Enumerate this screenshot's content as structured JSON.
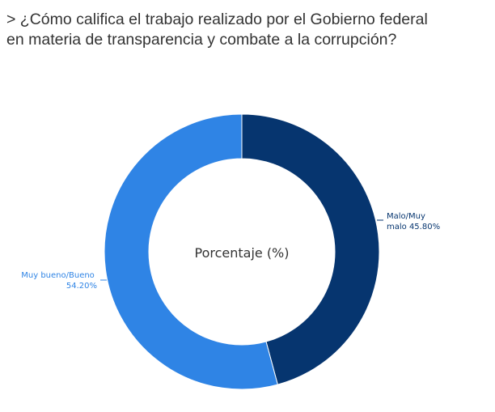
{
  "title_lines": [
    "> ¿Cómo califica el trabajo realizado por el Gobierno federal",
    "en materia de transparencia y combate a la corrupción?"
  ],
  "chart_data": {
    "type": "pie",
    "center_label": "Porcentaje (%)",
    "categories": [
      "Malo/Muy malo",
      "Muy bueno/Bueno"
    ],
    "values": [
      45.8,
      54.2
    ],
    "slice_labels": [
      [
        "Malo/Muy",
        "malo 45.80%"
      ],
      [
        "Muy bueno/Bueno",
        "54.20%"
      ]
    ],
    "colors": [
      "#06356f",
      "#2f84e5"
    ],
    "start_at": "top, clockwise",
    "legend": "none"
  }
}
